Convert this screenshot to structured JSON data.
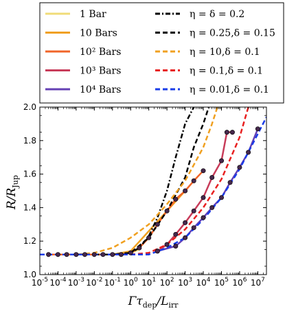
{
  "chart_data": {
    "type": "line",
    "xlabel": "Γτ_dep/L_irr",
    "ylabel": "R/R_Jup",
    "xlim": [
      1e-05,
      30000000.0
    ],
    "ylim": [
      1.0,
      2.0
    ],
    "x_scale": "log",
    "grid": false,
    "legend_position": "top",
    "x_tick_labels": [
      {
        "base": "10",
        "exp": "-5"
      },
      {
        "base": "10",
        "exp": "-4"
      },
      {
        "base": "10",
        "exp": "-3"
      },
      {
        "base": "10",
        "exp": "-2"
      },
      {
        "base": "10",
        "exp": "-1"
      },
      {
        "base": "10",
        "exp": "0"
      },
      {
        "base": "10",
        "exp": "1"
      },
      {
        "base": "10",
        "exp": "2"
      },
      {
        "base": "10",
        "exp": "3"
      },
      {
        "base": "10",
        "exp": "4"
      },
      {
        "base": "10",
        "exp": "5"
      },
      {
        "base": "10",
        "exp": "6"
      },
      {
        "base": "10",
        "exp": "7"
      }
    ],
    "y_ticks": [
      "1.0",
      "1.2",
      "1.4",
      "1.6",
      "1.8",
      "2.0"
    ],
    "series": [
      {
        "name": "1 Bar",
        "color": "#f0dc78",
        "style": "solid",
        "markers": false,
        "x": [
          0.01,
          0.1,
          1,
          3
        ],
        "y": [
          1.12,
          1.12,
          1.13,
          1.15
        ]
      },
      {
        "name": "10 Bars",
        "color": "#f0a020",
        "style": "solid",
        "markers": false,
        "x": [
          0.01,
          0.1,
          1,
          10,
          100,
          1000
        ],
        "y": [
          1.12,
          1.12,
          1.14,
          1.26,
          1.38,
          1.5
        ]
      },
      {
        "name": "10^2 Bars",
        "color": "#f06428",
        "style": "solid",
        "markers": true,
        "x": [
          3e-05,
          0.0001,
          0.0003,
          0.001,
          0.003,
          0.01,
          0.03,
          0.1,
          0.3,
          1,
          3,
          10,
          30,
          100,
          300,
          1000,
          3000,
          10000
        ],
        "y": [
          1.12,
          1.12,
          1.12,
          1.12,
          1.12,
          1.12,
          1.12,
          1.12,
          1.12,
          1.13,
          1.16,
          1.22,
          1.3,
          1.38,
          1.45,
          1.5,
          1.56,
          1.62
        ]
      },
      {
        "name": "10^3 Bars",
        "color": "#c83c5a",
        "style": "solid",
        "markers": true,
        "x": [
          30,
          100,
          300,
          1000,
          3000,
          10000,
          30000,
          100000,
          200000,
          400000
        ],
        "y": [
          1.14,
          1.18,
          1.24,
          1.31,
          1.38,
          1.46,
          1.58,
          1.68,
          1.85,
          1.85
        ]
      },
      {
        "name": "10^4 Bars",
        "color": "#6440b4",
        "style": "solid",
        "markers": true,
        "x": [
          30,
          300,
          1000,
          3000,
          10000,
          30000,
          100000,
          300000,
          1000000,
          3000000,
          10000000
        ],
        "y": [
          1.14,
          1.17,
          1.22,
          1.28,
          1.34,
          1.4,
          1.46,
          1.55,
          1.64,
          1.73,
          1.87
        ]
      },
      {
        "name": "η=δ=0.2",
        "color": "#000000",
        "style": "dashdot",
        "markers": false,
        "x": [
          0.01,
          0.1,
          1,
          3,
          10,
          30,
          100,
          300,
          1000,
          3000
        ],
        "y": [
          1.12,
          1.12,
          1.13,
          1.16,
          1.23,
          1.34,
          1.5,
          1.7,
          1.9,
          2.0
        ]
      },
      {
        "name": "η=0.25,δ=0.15",
        "color": "#000000",
        "style": "dashed",
        "markers": false,
        "x": [
          0.01,
          0.1,
          1,
          10,
          100,
          1000,
          3000,
          10000,
          20000
        ],
        "y": [
          1.12,
          1.12,
          1.13,
          1.22,
          1.38,
          1.58,
          1.76,
          1.9,
          2.0
        ]
      },
      {
        "name": "η=10,δ=0.1",
        "color": "#f0a020",
        "style": "dashed",
        "markers": false,
        "x": [
          1e-05,
          0.001,
          0.01,
          0.1,
          1,
          10,
          100,
          1000,
          10000,
          30000,
          60000
        ],
        "y": [
          1.12,
          1.12,
          1.13,
          1.16,
          1.22,
          1.3,
          1.42,
          1.56,
          1.76,
          1.9,
          2.0
        ]
      },
      {
        "name": "η=0.1,δ=0.1",
        "color": "#e82020",
        "style": "dashed",
        "markers": false,
        "x": [
          1e-05,
          0.01,
          1,
          10,
          100,
          1000,
          10000,
          100000,
          1000000,
          3000000
        ],
        "y": [
          1.12,
          1.12,
          1.12,
          1.13,
          1.18,
          1.27,
          1.4,
          1.57,
          1.82,
          2.0
        ]
      },
      {
        "name": "η=0.01,δ=0.1",
        "color": "#1a3ce8",
        "style": "dashed",
        "markers": false,
        "x": [
          1e-05,
          0.01,
          1,
          10,
          100,
          1000,
          10000,
          100000,
          1000000,
          10000000,
          30000000
        ],
        "y": [
          1.12,
          1.12,
          1.12,
          1.12,
          1.16,
          1.22,
          1.33,
          1.46,
          1.63,
          1.84,
          1.94
        ]
      }
    ]
  },
  "legend": {
    "items": [
      {
        "label": "1 Bar",
        "color": "#f0dc78",
        "style": "solid"
      },
      {
        "label": "10 Bars",
        "color": "#f0a020",
        "style": "solid"
      },
      {
        "label": "10² Bars",
        "color": "#f06428",
        "style": "solid"
      },
      {
        "label": "10³ Bars",
        "color": "#c83c5a",
        "style": "solid"
      },
      {
        "label": "10⁴ Bars",
        "color": "#6440b4",
        "style": "solid"
      },
      {
        "label": "η = δ = 0.2",
        "color": "#000000",
        "style": "dashdot"
      },
      {
        "label": "η = 0.25,δ = 0.15",
        "color": "#000000",
        "style": "dashed"
      },
      {
        "label": "η = 10,δ = 0.1",
        "color": "#f0a020",
        "style": "dashed"
      },
      {
        "label": "η = 0.1,δ = 0.1",
        "color": "#e82020",
        "style": "dashed"
      },
      {
        "label": "η = 0.01,δ = 0.1",
        "color": "#1a3ce8",
        "style": "dashed"
      }
    ]
  },
  "axes": {
    "xlabel": {
      "prefix": "Γτ",
      "sub1": "dep",
      "mid": "/L",
      "sub2": "irr"
    },
    "ylabel": {
      "prefix": "R/R",
      "sub": "Jup"
    }
  }
}
